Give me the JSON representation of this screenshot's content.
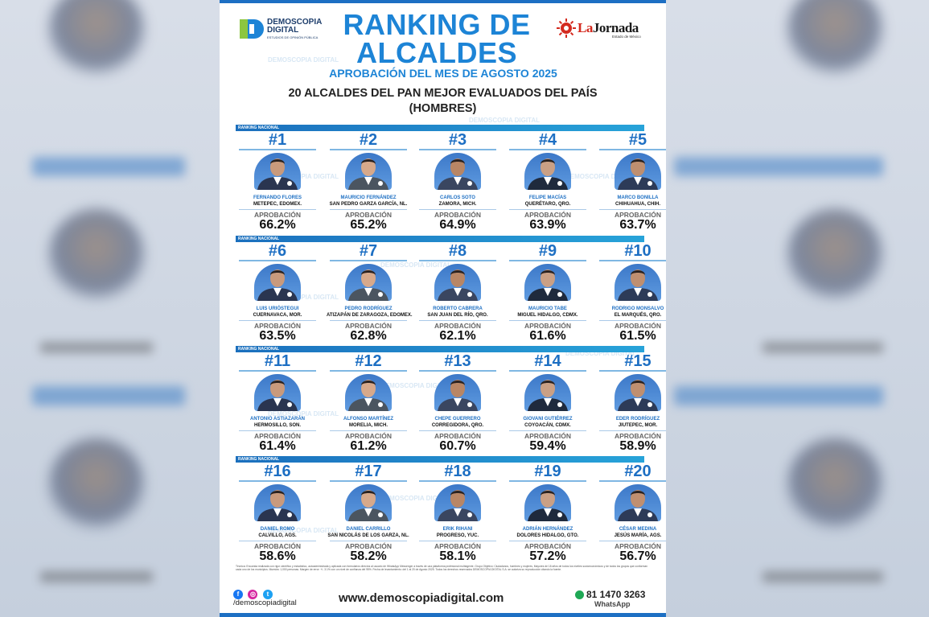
{
  "branding": {
    "demoscopia_name": "DEMOSCOPIA DIGITAL",
    "demoscopia_tagline": "ESTUDIOS DE OPINIÓN PÚBLICA",
    "jornada_name_a": "La",
    "jornada_name_b": "Jornada",
    "jornada_sub": "Estado de México",
    "watermark": "DEMOSCOPIA DIGITAL",
    "primary_color": "#1d84d6",
    "dark_blue": "#1d6fc3"
  },
  "header": {
    "title_line1": "RANKING DE",
    "title_line2": "ALCALDES",
    "subtitle": "APROBACIÓN DEL MES DE AGOSTO 2025",
    "heading_line1": "20 ALCALDES DEL PAN MEJOR EVALUADOS DEL PAÍS",
    "heading_line2": "(HOMBRES)"
  },
  "section_label": "RANKING NACIONAL",
  "approval_label": "APROBACIÓN",
  "rankings": [
    {
      "rank": "#1",
      "name": "FERNANDO FLORES",
      "place": "METEPEC, EDOMEX.",
      "approval": "66.2%"
    },
    {
      "rank": "#2",
      "name": "MAURICIO FERNÁNDEZ",
      "place": "SAN PEDRO GARZA GARCÍA, NL.",
      "approval": "65.2%"
    },
    {
      "rank": "#3",
      "name": "CARLOS SOTO",
      "place": "ZAMORA, MICH.",
      "approval": "64.9%"
    },
    {
      "rank": "#4",
      "name": "FELIPE MACÍAS",
      "place": "QUERÉTARO, QRO.",
      "approval": "63.9%"
    },
    {
      "rank": "#5",
      "name": "MARCO BONILLA",
      "place": "CHIHUAHUA, CHIH.",
      "approval": "63.7%"
    },
    {
      "rank": "#6",
      "name": "LUIS URIÓSTEGUI",
      "place": "CUERNAVACA, MOR.",
      "approval": "63.5%"
    },
    {
      "rank": "#7",
      "name": "PEDRO RODRÍGUEZ",
      "place": "ATIZAPÁN DE ZARAGOZA, EDOMEX.",
      "approval": "62.8%"
    },
    {
      "rank": "#8",
      "name": "ROBERTO CABRERA",
      "place": "SAN JUAN DEL RÍO, QRO.",
      "approval": "62.1%"
    },
    {
      "rank": "#9",
      "name": "MAURICIO TABE",
      "place": "MIGUEL HIDALGO, CDMX.",
      "approval": "61.6%"
    },
    {
      "rank": "#10",
      "name": "RODRIGO MONSALVO",
      "place": "EL MARQUÉS, QRO.",
      "approval": "61.5%"
    },
    {
      "rank": "#11",
      "name": "ANTONIO ASTIAZARÁN",
      "place": "HERMOSILLO, SON.",
      "approval": "61.4%"
    },
    {
      "rank": "#12",
      "name": "ALFONSO MARTÍNEZ",
      "place": "MORELIA, MICH.",
      "approval": "61.2%"
    },
    {
      "rank": "#13",
      "name": "CHEPE GUERRERO",
      "place": "CORREGIDORA, QRO.",
      "approval": "60.7%"
    },
    {
      "rank": "#14",
      "name": "GIOVANI GUTIÉRREZ",
      "place": "COYOACÁN, CDMX.",
      "approval": "59.4%"
    },
    {
      "rank": "#15",
      "name": "EDER RODRÍGUEZ",
      "place": "JIUTEPEC, MOR.",
      "approval": "58.9%"
    },
    {
      "rank": "#16",
      "name": "DANIEL ROMO",
      "place": "CALVILLO, AGS.",
      "approval": "58.6%"
    },
    {
      "rank": "#17",
      "name": "DANIEL CARRILLO",
      "place": "SAN NICOLÁS DE LOS GARZA, NL.",
      "approval": "58.2%"
    },
    {
      "rank": "#18",
      "name": "ERIK RIHANI",
      "place": "PROGRESO, YUC.",
      "approval": "58.1%"
    },
    {
      "rank": "#19",
      "name": "ADRIÁN HERNÁNDEZ",
      "place": "DOLORES HIDALGO, GTO.",
      "approval": "57.2%"
    },
    {
      "rank": "#20",
      "name": "CÉSAR MEDINA",
      "place": "JESÚS MARÍA, AGS.",
      "approval": "56.7%"
    }
  ],
  "footer": {
    "fineprint": "Técnica: Encuesta realizada con rigor científico y estadístico, autoadministrada y aplicada con formularios directos al usuario de WhatsApp Messenger a través de una plataforma profesional multiagente. Grupo Objetivo: Ciudadanos, hombres y mujeres, Mayores de 18 años de todos los niveles socioeconómicos y de todos los grupos que conforman cada uno de los municipios. Muestra: 1,000 personas. Margen de error: +/- 3.1% con un nivel de confianza del 95%. Fecha de levantamiento: del 1 al 20 de Agosto 2025. Todos los derechos reservados DEMOSCOPIA DIGITAL S.A. se autoriza su reproducción citando la fuente.",
    "social_handle": "/demoscopiadigital",
    "website": "www.demoscopiadigital.com",
    "whatsapp_number": "81 1470 3263",
    "whatsapp_label": "WhatsApp"
  }
}
